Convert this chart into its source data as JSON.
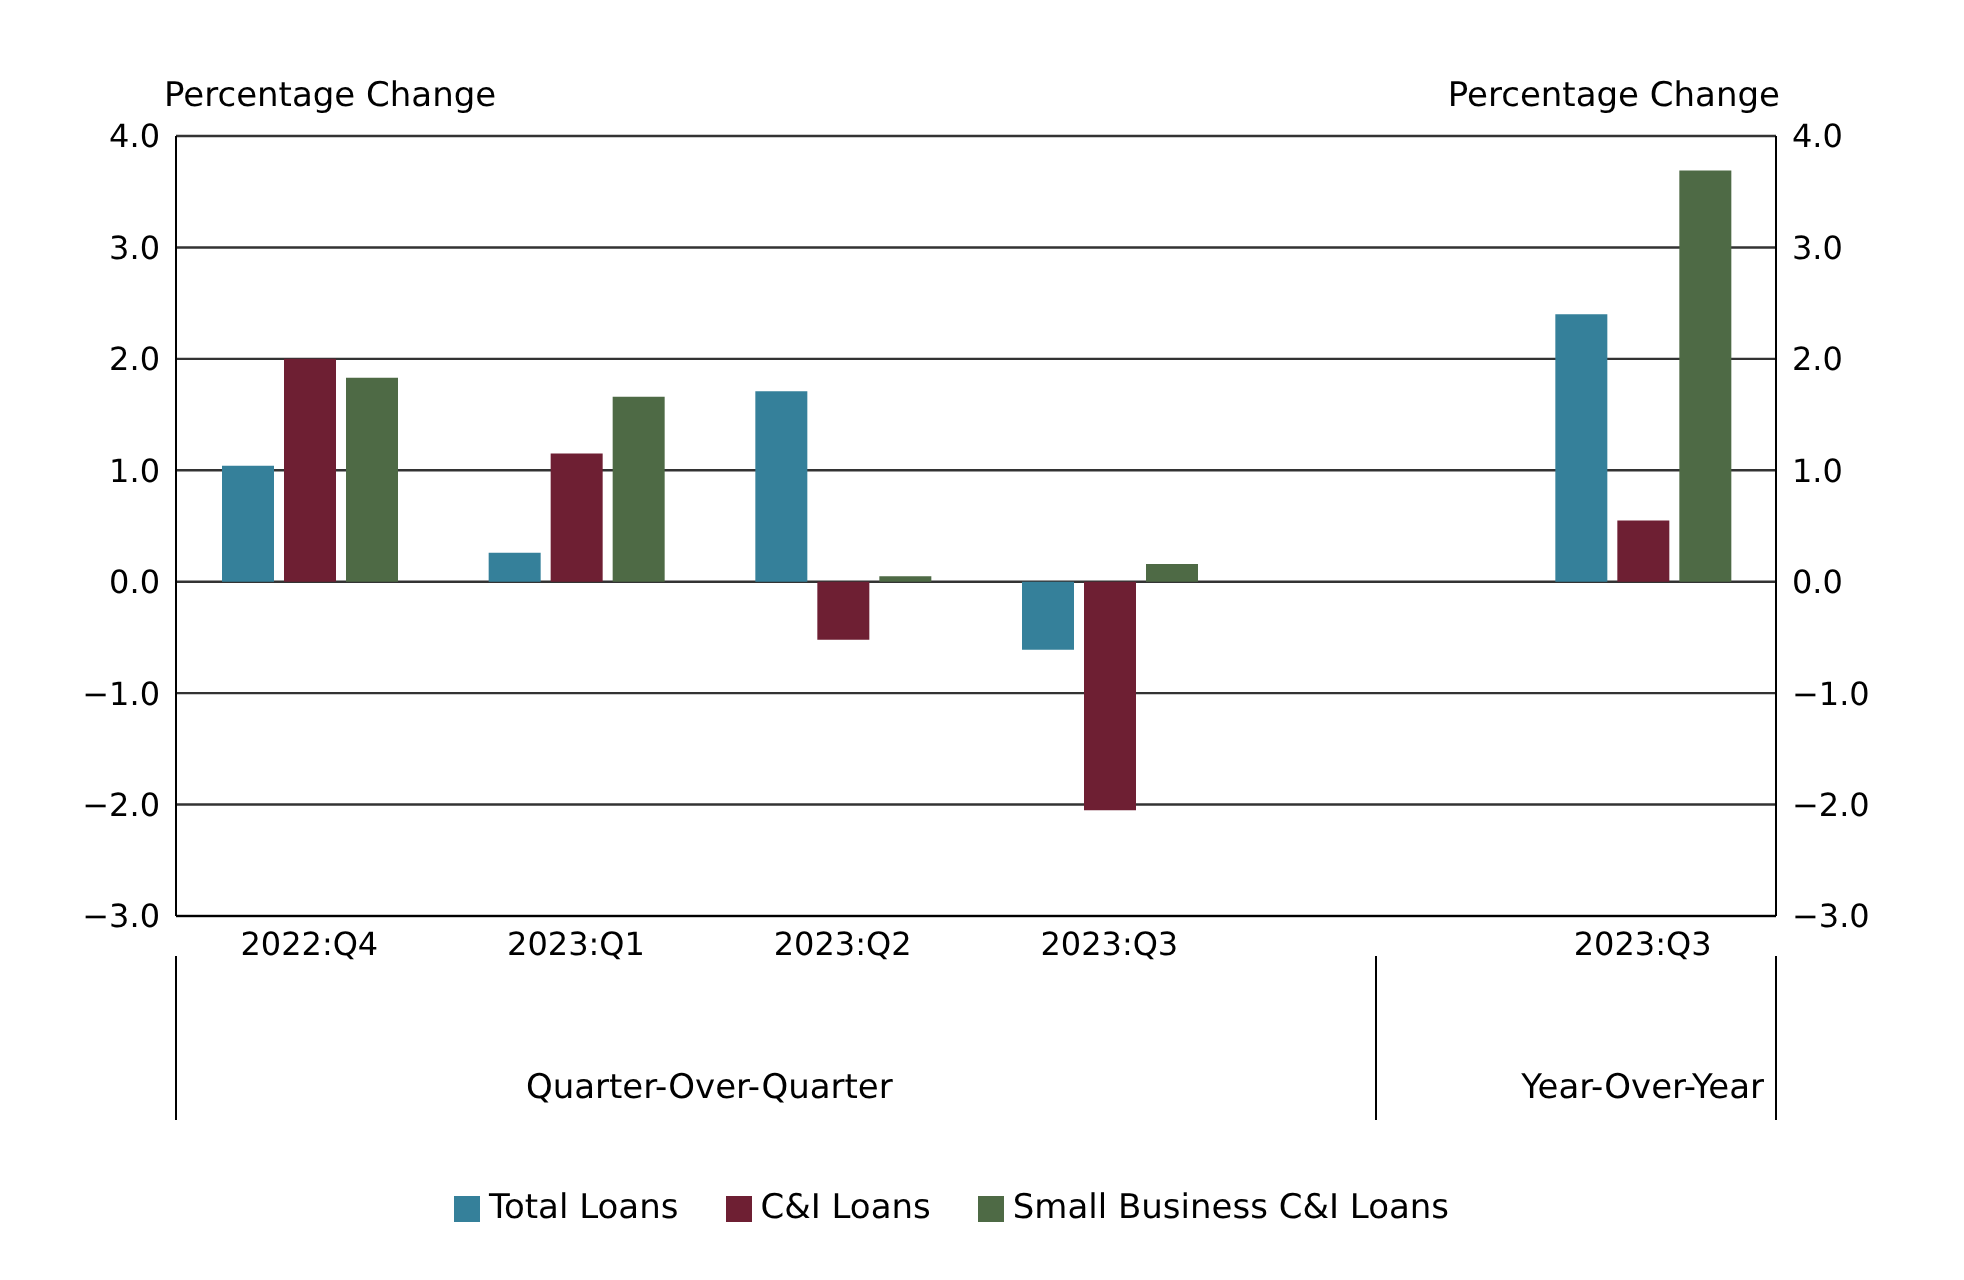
{
  "chart_data": {
    "type": "bar",
    "ylabel": "Percentage Change",
    "y2label": "Percentage Change",
    "categories": [
      "2022:Q4",
      "2023:Q1",
      "2023:Q2",
      "2023:Q3",
      null,
      "2023:Q3"
    ],
    "series": [
      {
        "name": "Total Loans",
        "color": "#35809a",
        "values": [
          1.04,
          0.26,
          1.71,
          -0.61,
          null,
          2.4
        ]
      },
      {
        "name": "C&I Loans",
        "color": "#6e1f33",
        "values": [
          2.0,
          1.15,
          -0.52,
          -2.05,
          null,
          0.55
        ]
      },
      {
        "name": "Small Business C&I Loans",
        "color": "#4e6a45",
        "values": [
          1.83,
          1.66,
          0.05,
          0.16,
          null,
          3.69
        ]
      }
    ],
    "ylim": [
      -3,
      4
    ],
    "yticks": [
      {
        "value": 4,
        "label": "4.0"
      },
      {
        "value": 3,
        "label": "3.0"
      },
      {
        "value": 2,
        "label": "2.0"
      },
      {
        "value": 1,
        "label": "1.0"
      },
      {
        "value": 0,
        "label": "0.0"
      },
      {
        "value": -1,
        "label": "−1.0"
      },
      {
        "value": -2,
        "label": "−2.0"
      },
      {
        "value": -3,
        "label": "−3.0"
      }
    ],
    "y2lim": [
      -3,
      4
    ],
    "y2ticks": [
      {
        "value": 4,
        "label": "4.0"
      },
      {
        "value": 3,
        "label": "3.0"
      },
      {
        "value": 2,
        "label": "2.0"
      },
      {
        "value": 1,
        "label": "1.0"
      },
      {
        "value": 0,
        "label": "0.0"
      },
      {
        "value": -1,
        "label": "−1.0"
      },
      {
        "value": -2,
        "label": "−2.0"
      },
      {
        "value": -3,
        "label": "−3.0"
      }
    ],
    "annotations": [
      "Quarter-Over-Quarter",
      "Year-Over-Year"
    ],
    "grid": "y",
    "legend": "bottom"
  }
}
